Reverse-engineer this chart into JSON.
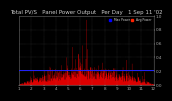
{
  "title": "Total PV/S   Panel Power Output   Per Day   1 Sep 11 '02",
  "legend_entries": [
    "Max Power",
    "Avg Power"
  ],
  "legend_colors_hex": [
    "#0000ff",
    "#ff2200"
  ],
  "bg_color": "#000000",
  "plot_bg_color": "#000000",
  "grid_color": "#888888",
  "fill_color": "#dd0000",
  "line_color": "#ff0000",
  "hline_color": "#2222ff",
  "hline_value": 0.22,
  "ylim": [
    0.0,
    1.0
  ],
  "n_points": 400,
  "title_fontsize": 4.0,
  "tick_fontsize": 3.0,
  "seed": 12
}
